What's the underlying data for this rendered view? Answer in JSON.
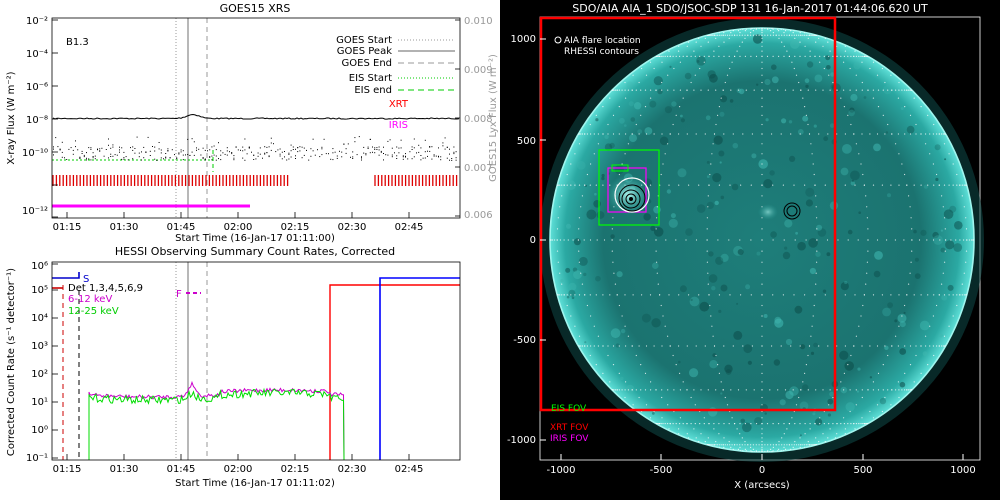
{
  "chart_data": [
    {
      "type": "line",
      "title": "GOES15 XRS",
      "flare_class_label": "B1.3",
      "xlabel": "Start Time (16-Jan-17 01:11:00)",
      "ylabel": "X-ray Flux (W m⁻²)",
      "ylabel2": "GOES15 Lyx Flux (W m⁻²)",
      "x_range": [
        "01:11",
        "02:47"
      ],
      "y_range": [
        1e-12,
        0.01
      ],
      "y_scale": "log",
      "y2_range": [
        0.006,
        0.01
      ],
      "x_ticks": [
        "01:15",
        "01:30",
        "01:45",
        "02:00",
        "02:15",
        "02:30",
        "02:45"
      ],
      "y_ticks": [
        "10⁻¹²",
        "10⁻¹⁰",
        "10⁻⁸",
        "10⁻⁶",
        "10⁻⁴",
        "10⁻²"
      ],
      "y2_ticks": [
        "0.006",
        "0.007",
        "0.008",
        "0.009",
        "0.010"
      ],
      "legend_placement": "top-right",
      "legend": [
        {
          "label": "GOES Start",
          "style": "dotted",
          "color": "#999999"
        },
        {
          "label": "GOES Peak",
          "style": "solid",
          "color": "#999999"
        },
        {
          "label": "GOES End",
          "style": "dashed",
          "color": "#999999"
        },
        {
          "label": "EIS Start",
          "style": "dotted",
          "color": "#00cc00"
        },
        {
          "label": "EIS end",
          "style": "dashed",
          "color": "#00cc00"
        },
        {
          "label": "XRT",
          "style": "text",
          "color": "#ff0000"
        },
        {
          "label": "IRIS",
          "style": "text",
          "color": "#ff00ff"
        }
      ],
      "markers": {
        "goes_start": "01:41",
        "goes_peak": "01:43",
        "goes_end": "01:47"
      }
    },
    {
      "type": "line",
      "title": "HESSI Observing Summary Count Rates, Corrected",
      "xlabel": "Start Time (16-Jan-17 01:11:02)",
      "ylabel": "Corrected Count Rate (s⁻¹ detector⁻¹)",
      "x_range": [
        "01:11",
        "02:47"
      ],
      "y_range": [
        0.1,
        1000000
      ],
      "y_scale": "log",
      "x_ticks": [
        "01:15",
        "01:30",
        "01:45",
        "02:00",
        "02:15",
        "02:30",
        "02:45"
      ],
      "y_ticks": [
        "10⁻¹",
        "10⁰",
        "10¹",
        "10²",
        "10³",
        "10⁴",
        "10⁵",
        "10⁶"
      ],
      "legend_placement": "top-left",
      "legend_text": [
        "Det 1,3,4,5,6,9",
        "6-12 keV",
        "12-25 keV"
      ],
      "series": [
        {
          "name": "6-12 keV",
          "color": "#cc00cc"
        },
        {
          "name": "12-25 keV",
          "color": "#00dd00"
        }
      ],
      "flag_labels": [
        "S",
        "F"
      ]
    },
    {
      "type": "other",
      "title": "SDO/AIA AIA_1 SDO/JSOC-SDP 131 16-Jan-2017 01:44:06.620 UT",
      "xlabel": "X (arcsecs)",
      "x_range": [
        -1100,
        1100
      ],
      "y_range": [
        -1100,
        1100
      ],
      "x_ticks": [
        "-1000",
        "-500",
        "0",
        "500",
        "1000"
      ],
      "y_ticks": [
        "-1000",
        "-500",
        "0",
        "500",
        "1000"
      ],
      "annotations": [
        "AIA flare location",
        "RHESSI contours",
        "EIS FOV",
        "XRT FOV",
        "IRIS FOV"
      ],
      "colors": {
        "eis": "#00ff00",
        "xrt": "#ff0000",
        "iris": "#ff00ff",
        "disk": "#2aa7a0"
      }
    }
  ]
}
